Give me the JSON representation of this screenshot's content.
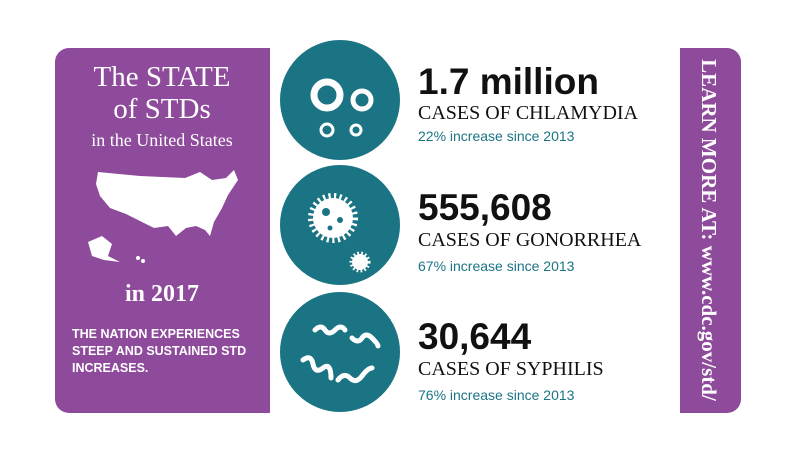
{
  "header": {
    "title": [
      "The STATE",
      "of STDs"
    ],
    "subtitle": "in the United States",
    "year": "in 2017"
  },
  "description": [
    "THE NATION EXPERIENCES",
    "STEEP AND SUSTAINED STD",
    "INCREASES."
  ],
  "stats": [
    {
      "number": "1.7 million",
      "label": "CASES OF CHLAMYDIA",
      "change": "22% increase since 2013"
    },
    {
      "number": "555,608",
      "label": "CASES OF GONORRHEA",
      "change": "67% increase since 2013"
    },
    {
      "number": "30,644",
      "label": "CASES OF SYPHILIS",
      "change": "76% increase since 2013"
    }
  ],
  "side_text": "LEARN MORE AT: www.cdc.gov/std/"
}
